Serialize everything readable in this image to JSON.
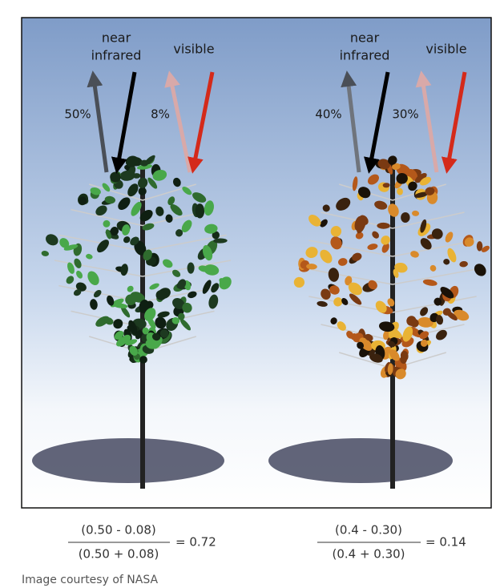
{
  "left_panel": {
    "nir_label": [
      "near",
      "infrared"
    ],
    "visible_label": "visible",
    "nir_reflect": "50%",
    "visible_reflect": "8%",
    "formula": {
      "numerator": "(0.50 - 0.08)",
      "denominator": "(0.50 + 0.08)",
      "result": "= 0.72"
    }
  },
  "right_panel": {
    "nir_label": [
      "near",
      "infrared"
    ],
    "visible_label": "visible",
    "nir_reflect": "40%",
    "visible_reflect": "30%",
    "formula": {
      "numerator": "(0.4 - 0.30)",
      "denominator": "(0.4 + 0.30)",
      "result": "= 0.14"
    }
  },
  "caption": "Image courtesy of NASA"
}
